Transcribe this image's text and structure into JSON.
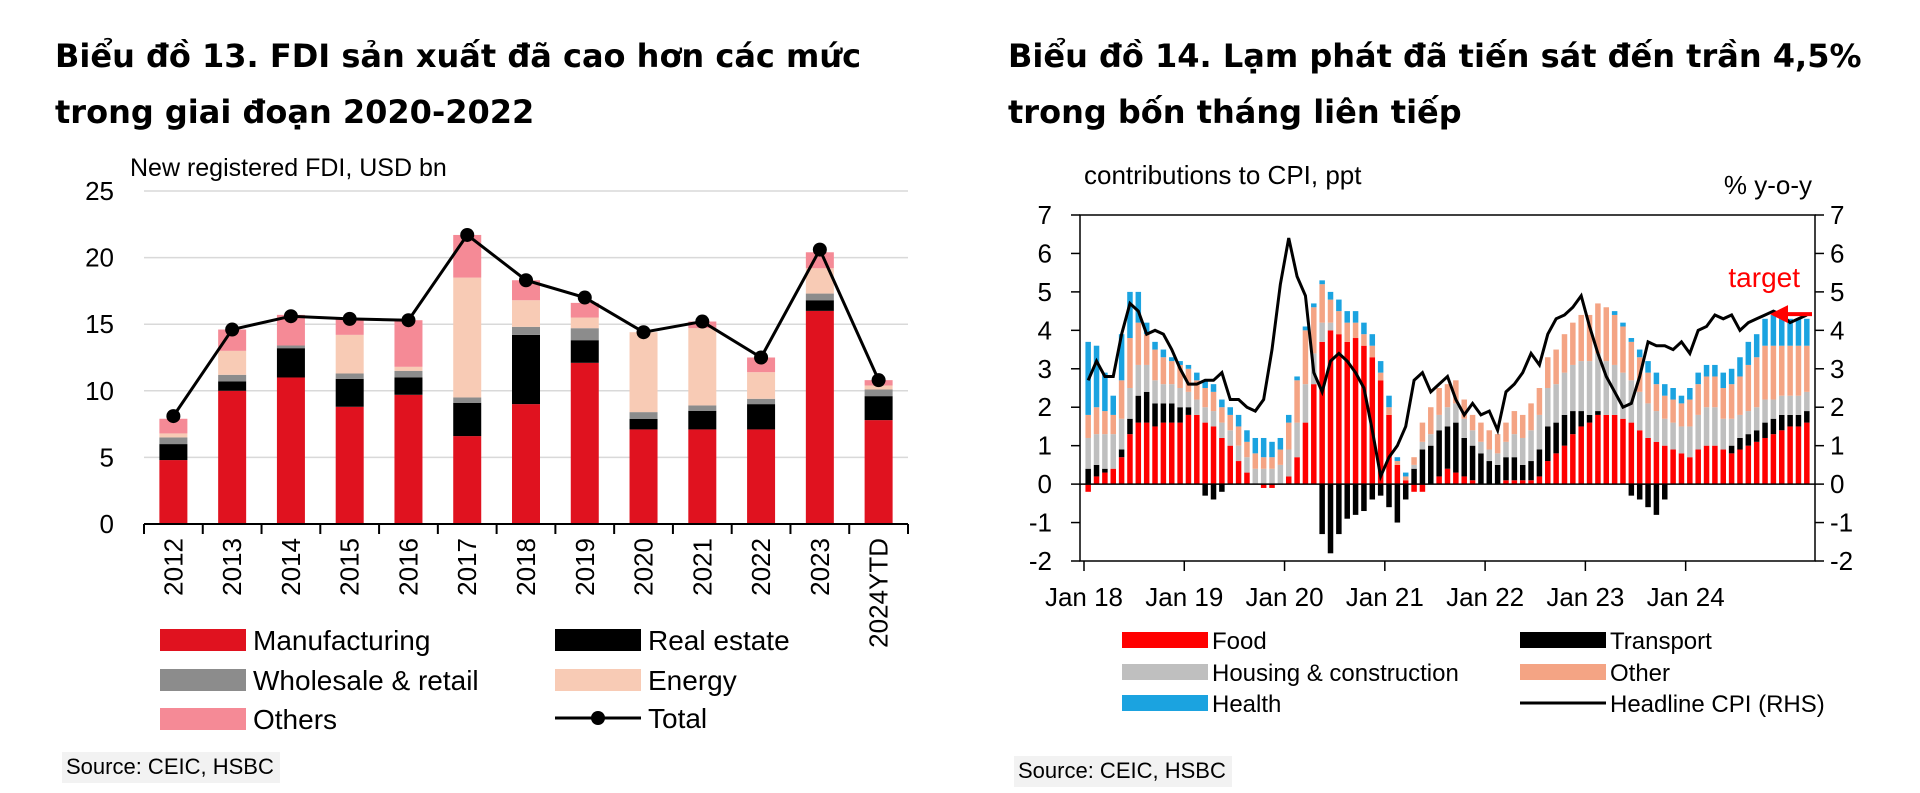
{
  "chart_data": [
    {
      "type": "bar",
      "title_line1": "Biểu đồ 13. FDI sản xuất đã cao hơn các mức",
      "title_line2": "trong giai đoạn 2020-2022",
      "unit_label": "New registered FDI, USD bn",
      "ylim": [
        0,
        25
      ],
      "yticks": [
        "0",
        "5",
        "10",
        "15",
        "20",
        "25"
      ],
      "categories": [
        "2012",
        "2013",
        "2014",
        "2015",
        "2016",
        "2017",
        "2018",
        "2019",
        "2020",
        "2021",
        "2022",
        "2023",
        "2024YTD"
      ],
      "series": [
        {
          "name": "Manufacturing",
          "color": "#e0121f",
          "values": [
            4.8,
            10.0,
            11.0,
            8.8,
            9.7,
            6.6,
            9.0,
            12.1,
            7.1,
            7.1,
            7.1,
            16.0,
            7.8
          ]
        },
        {
          "name": "Real estate",
          "color": "#000000",
          "values": [
            1.2,
            0.7,
            2.2,
            2.1,
            1.3,
            2.5,
            5.2,
            1.7,
            0.8,
            1.4,
            1.9,
            0.8,
            1.8
          ]
        },
        {
          "name": "Wholesale & retail",
          "color": "#8c8c8c",
          "values": [
            0.5,
            0.5,
            0.2,
            0.4,
            0.5,
            0.4,
            0.6,
            0.9,
            0.5,
            0.4,
            0.4,
            0.5,
            0.5
          ]
        },
        {
          "name": "Energy",
          "color": "#f8cbb5",
          "values": [
            0.3,
            1.8,
            0.0,
            2.9,
            0.3,
            9.0,
            2.0,
            0.8,
            6.0,
            5.8,
            2.0,
            1.9,
            0.3
          ]
        },
        {
          "name": "Others",
          "color": "#f58a96",
          "values": [
            1.1,
            1.6,
            2.3,
            1.2,
            3.5,
            3.2,
            1.5,
            1.1,
            0.0,
            0.5,
            1.1,
            1.2,
            0.4
          ]
        }
      ],
      "total": {
        "name": "Total",
        "values": [
          8.1,
          14.6,
          15.6,
          15.4,
          15.3,
          21.7,
          18.3,
          17.0,
          14.4,
          15.2,
          12.5,
          20.6,
          10.8
        ]
      },
      "source": "Source: CEIC, HSBC"
    },
    {
      "type": "bar",
      "title_line1": "Biểu đồ 14. Lạm phát đã tiến sát đến trần 4,5%",
      "title_line2": "trong bốn tháng liên tiếp",
      "ylabel_left": "contributions to CPI, ppt",
      "ylabel_right": "% y-o-y",
      "ylim": [
        -2,
        7
      ],
      "yticks": [
        "-2",
        "-1",
        "0",
        "1",
        "2",
        "3",
        "4",
        "5",
        "6",
        "7"
      ],
      "x_labels": [
        "Jan 18",
        "Jan 19",
        "Jan 20",
        "Jan 21",
        "Jan 22",
        "Jan 23",
        "Jan 24"
      ],
      "target_label": "target",
      "target_value": 4.5,
      "series": [
        {
          "name": "Food",
          "color": "#ff0000",
          "values": [
            -0.2,
            0.2,
            0.3,
            0.4,
            0.7,
            1.3,
            1.6,
            1.6,
            1.5,
            1.6,
            1.6,
            1.6,
            1.8,
            1.8,
            1.6,
            1.5,
            1.2,
            1.0,
            0.6,
            0.3,
            0.0,
            -0.1,
            -0.1,
            0.0,
            0.2,
            0.7,
            1.6,
            2.6,
            3.7,
            4.0,
            3.9,
            3.7,
            3.8,
            3.6,
            3.3,
            2.7,
            1.8,
            0.5,
            0.1,
            -0.2,
            -0.2,
            0.0,
            0.2,
            0.4,
            0.3,
            0.2,
            0.1,
            0.0,
            0.0,
            0.0,
            0.1,
            0.1,
            0.1,
            0.1,
            0.2,
            0.6,
            0.8,
            1.0,
            1.3,
            1.5,
            1.6,
            1.8,
            1.8,
            1.8,
            1.7,
            1.6,
            1.4,
            1.2,
            1.1,
            1.0,
            0.9,
            0.8,
            0.7,
            0.9,
            1.0,
            1.0,
            0.9,
            0.8,
            0.9,
            1.0,
            1.1,
            1.2,
            1.3,
            1.4,
            1.5,
            1.5,
            1.6
          ]
        },
        {
          "name": "Transport",
          "color": "#000000",
          "values": [
            0.4,
            0.3,
            0.1,
            0.0,
            0.2,
            0.4,
            0.7,
            0.8,
            0.6,
            0.5,
            0.5,
            0.4,
            0.2,
            0.0,
            -0.3,
            -0.4,
            -0.2,
            0.0,
            0.0,
            0.0,
            0.0,
            0.0,
            0.0,
            0.0,
            0.0,
            0.0,
            0.0,
            0.0,
            -1.3,
            -1.8,
            -1.3,
            -0.9,
            -0.8,
            -0.7,
            -0.4,
            -0.3,
            -0.6,
            -1.0,
            -0.4,
            0.4,
            0.9,
            1.0,
            1.2,
            1.1,
            1.3,
            1.0,
            0.9,
            0.8,
            0.6,
            0.5,
            0.6,
            0.6,
            0.4,
            0.5,
            0.7,
            0.9,
            0.8,
            0.8,
            0.6,
            0.4,
            0.2,
            0.1,
            0.0,
            0.0,
            0.0,
            -0.3,
            -0.4,
            -0.6,
            -0.8,
            -0.4,
            0.0,
            0.0,
            0.0,
            0.0,
            0.0,
            0.0,
            0.0,
            0.2,
            0.3,
            0.3,
            0.3,
            0.4,
            0.4,
            0.4,
            0.3,
            0.3,
            0.3
          ]
        },
        {
          "name": "Housing & construction",
          "color": "#bfbfbf",
          "values": [
            0.8,
            0.8,
            0.9,
            0.9,
            0.8,
            0.8,
            0.8,
            0.7,
            0.6,
            0.5,
            0.5,
            0.5,
            0.4,
            0.4,
            0.4,
            0.4,
            0.4,
            0.4,
            0.4,
            0.4,
            0.4,
            0.4,
            0.4,
            0.5,
            0.7,
            0.9,
            1.0,
            0.8,
            0.5,
            0.2,
            0.0,
            0.0,
            0.0,
            0.0,
            0.0,
            0.0,
            0.0,
            0.0,
            0.0,
            0.1,
            0.2,
            0.3,
            0.4,
            0.5,
            0.5,
            0.5,
            0.4,
            0.3,
            0.3,
            0.3,
            0.4,
            0.6,
            0.7,
            0.8,
            0.9,
            1.0,
            1.0,
            1.1,
            1.2,
            1.3,
            1.4,
            1.5,
            1.4,
            1.3,
            1.2,
            1.1,
            1.0,
            0.9,
            0.8,
            0.7,
            0.7,
            0.7,
            0.8,
            0.9,
            1.0,
            1.0,
            0.8,
            0.7,
            0.6,
            0.6,
            0.6,
            0.6,
            0.5,
            0.5,
            0.5,
            0.5,
            0.5
          ]
        },
        {
          "name": "Other",
          "color": "#f4a484",
          "values": [
            0.6,
            0.7,
            0.6,
            0.5,
            1.0,
            1.3,
            1.1,
            0.8,
            0.8,
            0.7,
            0.6,
            0.6,
            0.6,
            0.5,
            0.5,
            0.5,
            0.4,
            0.4,
            0.5,
            0.4,
            0.4,
            0.3,
            0.3,
            0.4,
            0.7,
            1.1,
            1.4,
            1.2,
            1.0,
            0.6,
            0.6,
            0.5,
            0.4,
            0.3,
            0.3,
            0.2,
            0.2,
            0.1,
            0.1,
            0.2,
            0.5,
            0.7,
            0.7,
            0.6,
            0.6,
            0.5,
            0.4,
            0.5,
            0.5,
            0.5,
            0.5,
            0.6,
            0.6,
            0.7,
            0.7,
            0.8,
            0.9,
            1.0,
            1.1,
            1.2,
            1.2,
            1.3,
            1.4,
            1.3,
            1.2,
            1.0,
            0.9,
            0.8,
            0.7,
            0.6,
            0.6,
            0.6,
            0.7,
            0.8,
            0.8,
            0.8,
            0.8,
            0.9,
            1.0,
            1.2,
            1.3,
            1.4,
            1.4,
            1.3,
            1.3,
            1.3,
            1.2
          ]
        },
        {
          "name": "Health",
          "color": "#1ba3e0",
          "values": [
            1.9,
            1.6,
            1.0,
            0.5,
            1.2,
            1.2,
            0.8,
            0.3,
            0.2,
            0.2,
            0.1,
            0.1,
            0.1,
            0.2,
            0.2,
            0.2,
            0.2,
            0.2,
            0.3,
            0.3,
            0.4,
            0.5,
            0.4,
            0.3,
            0.2,
            0.1,
            0.1,
            0.1,
            0.1,
            0.2,
            0.3,
            0.3,
            0.3,
            0.3,
            0.3,
            0.3,
            0.3,
            0.1,
            0.1,
            0.0,
            0.0,
            0.0,
            0.0,
            0.0,
            0.0,
            0.0,
            0.0,
            0.0,
            0.0,
            0.0,
            0.0,
            0.0,
            0.0,
            0.0,
            0.0,
            0.0,
            0.0,
            0.0,
            0.0,
            0.0,
            0.0,
            0.0,
            0.0,
            0.1,
            0.1,
            0.1,
            0.2,
            0.3,
            0.3,
            0.3,
            0.3,
            0.2,
            0.3,
            0.3,
            0.3,
            0.3,
            0.4,
            0.4,
            0.5,
            0.6,
            0.6,
            0.7,
            0.8,
            0.8,
            0.7,
            0.7,
            0.7
          ]
        }
      ],
      "headline": {
        "name": "Headline CPI (RHS)",
        "values": [
          2.7,
          3.2,
          2.8,
          2.8,
          3.9,
          4.7,
          4.5,
          3.9,
          4.0,
          3.9,
          3.5,
          3.0,
          2.6,
          2.6,
          2.7,
          2.7,
          2.9,
          2.2,
          2.2,
          2.0,
          1.9,
          2.2,
          3.5,
          5.2,
          6.4,
          5.4,
          4.9,
          2.9,
          2.4,
          3.2,
          3.4,
          3.2,
          2.9,
          2.5,
          1.4,
          0.2,
          0.7,
          1.0,
          1.5,
          2.7,
          2.9,
          2.4,
          2.6,
          2.8,
          2.2,
          1.8,
          2.1,
          1.8,
          1.9,
          1.4,
          2.4,
          2.6,
          2.9,
          3.4,
          3.1,
          3.9,
          4.3,
          4.4,
          4.6,
          4.9,
          4.1,
          3.4,
          2.8,
          2.4,
          2.0,
          2.1,
          2.8,
          3.7,
          3.6,
          3.6,
          3.5,
          3.7,
          3.4,
          4.0,
          4.1,
          4.4,
          4.3,
          4.4,
          4.0,
          4.2,
          4.3,
          4.4,
          4.5,
          4.4,
          4.2,
          4.3,
          4.4
        ]
      },
      "source": "Source: CEIC, HSBC"
    }
  ]
}
